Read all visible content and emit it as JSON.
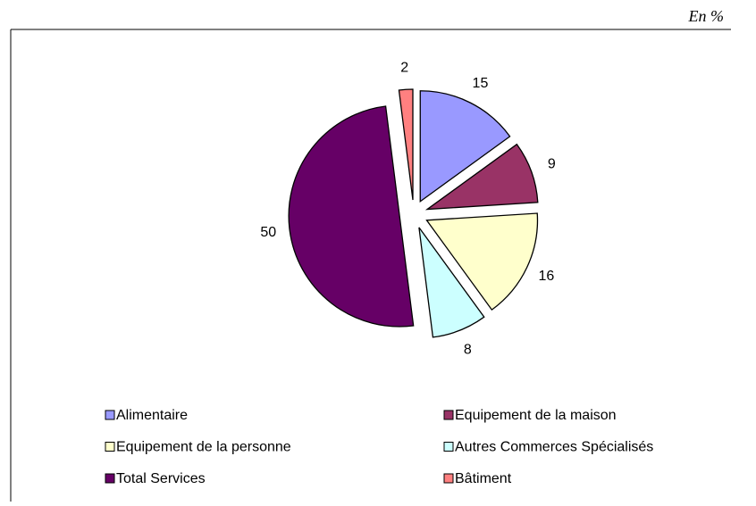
{
  "chart_data": {
    "type": "pie",
    "subtitle": "En %",
    "categories": [
      "Alimentaire",
      "Equipement de la maison",
      "Equipement de la personne",
      "Autres Commerces Spécialisés",
      "Total Services",
      "Bâtiment"
    ],
    "values": [
      15,
      9,
      16,
      8,
      50,
      2
    ],
    "colors": [
      "#9999ff",
      "#993366",
      "#ffffcc",
      "#ccffff",
      "#660066",
      "#ff8080"
    ],
    "legend": "bottom"
  }
}
